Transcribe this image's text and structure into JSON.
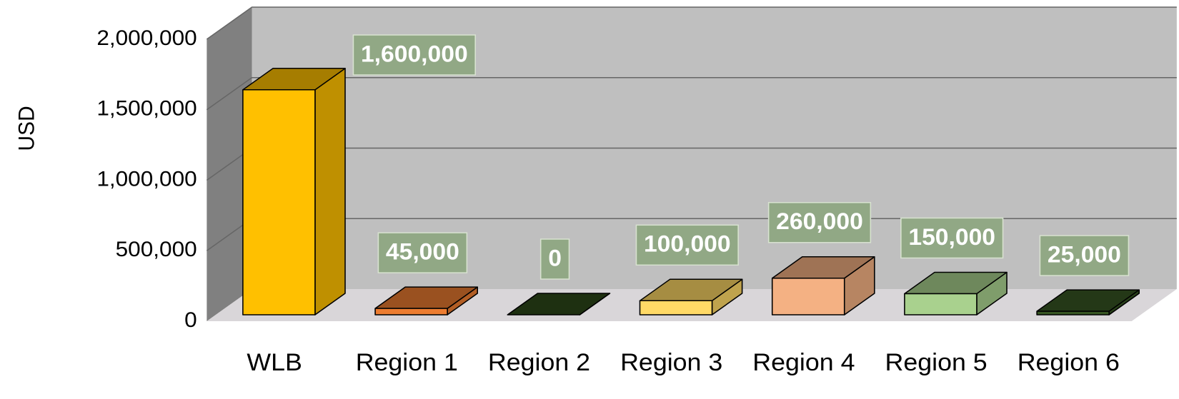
{
  "chart_data": {
    "type": "bar3d",
    "y_label": "USD",
    "categories": [
      "WLB",
      "Region 1",
      "Region 2",
      "Region 3",
      "Region 4",
      "Region 5",
      "Region 6"
    ],
    "values": [
      1600000,
      45000,
      0,
      100000,
      260000,
      150000,
      25000
    ],
    "value_labels": [
      "1,600,000",
      "45,000",
      "0",
      "100,000",
      "260,000",
      "150,000",
      "25,000"
    ],
    "colors": [
      "#FFC000",
      "#ED7D31",
      "#2E4A1A",
      "#FFD966",
      "#F4B183",
      "#A9D18E",
      "#375623"
    ],
    "ylim": [
      0,
      2000000
    ],
    "yticks": [
      0,
      {
        "value": 500000,
        "label": "500,000"
      },
      {
        "value": 1000000,
        "label": "1,000,000"
      },
      {
        "value": 1500000,
        "label": "1,500,000"
      },
      {
        "value": 2000000,
        "label": "2,000,000"
      }
    ],
    "grid": true
  }
}
